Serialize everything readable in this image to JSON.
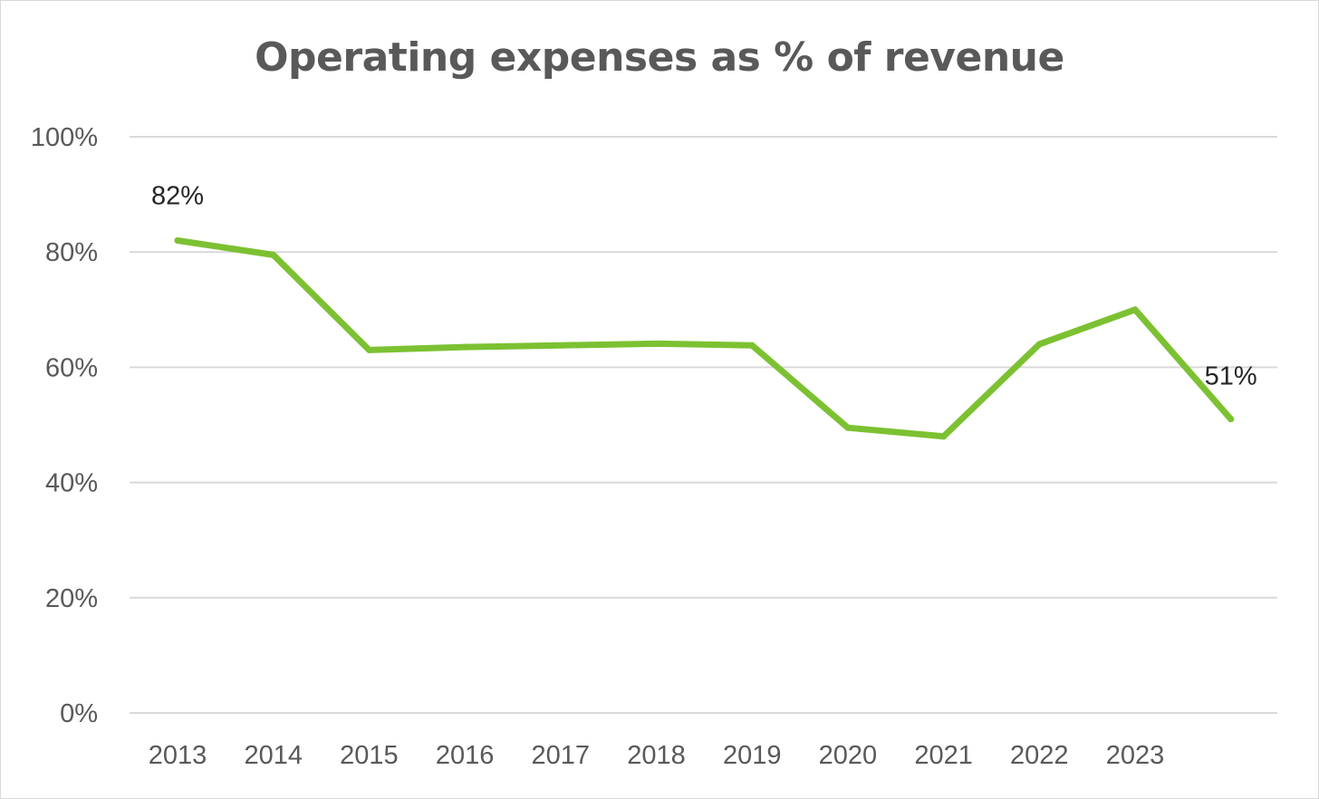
{
  "chart_data": {
    "type": "line",
    "title": "Operating expenses as % of revenue",
    "xlabel": "",
    "ylabel": "",
    "categories": [
      "2013",
      "2014",
      "2015",
      "2016",
      "2017",
      "2018",
      "2019",
      "2020",
      "2021",
      "2022",
      "2023",
      ""
    ],
    "series": [
      {
        "values": [
          0.82,
          0.795,
          0.63,
          0.635,
          0.638,
          0.641,
          0.638,
          0.495,
          0.48,
          0.64,
          0.7,
          0.51
        ],
        "color": "#7cc132"
      }
    ],
    "y_ticks": [
      "0%",
      "20%",
      "40%",
      "60%",
      "80%",
      "100%"
    ],
    "ylim": [
      0,
      1
    ],
    "grid": true,
    "legend": "none",
    "data_labels": [
      {
        "index": 0,
        "text": "82%"
      },
      {
        "index": 11,
        "text": "51%"
      }
    ]
  }
}
